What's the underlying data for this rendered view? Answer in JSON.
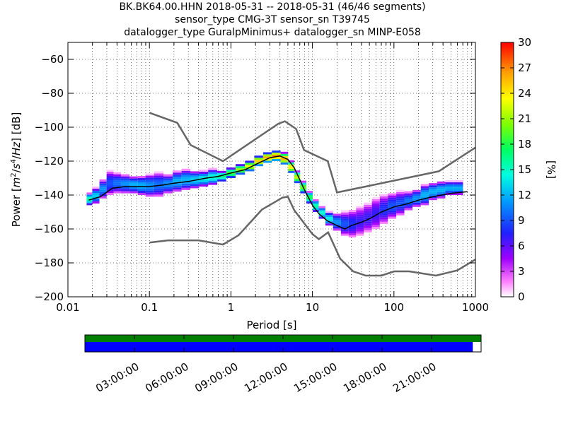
{
  "header": {
    "title_line1": "BK.BK64.00.HHN   2018-05-31 -- 2018-05-31  (46/46 segments)",
    "title_line2": "sensor_type CMG-3T sensor_sn T39745",
    "title_line3": "datalogger_type GuralpMinimus+ datalogger_sn MINP-E058"
  },
  "colors": {
    "noise_model": "#666666",
    "mean_line": "#000000",
    "data_coverage": "#008000",
    "psd_coverage": "#0000ff"
  },
  "chart_data": [
    {
      "type": "heatmap",
      "title": "BK.BK64.00.HHN   2018-05-31 -- 2018-05-31  (46/46 segments)",
      "xlabel": "Period [s]",
      "ylabel": "Power [m²/s⁴/Hz] [dB]",
      "xscale": "log",
      "xlim": [
        0.01,
        1000
      ],
      "ylim": [
        -200,
        -50
      ],
      "x_tick_labels": [
        "0.01",
        "0.1",
        "1",
        "10",
        "100",
        "1000"
      ],
      "y_tick_labels": [
        "−60",
        "−80",
        "−100",
        "−120",
        "−140",
        "−160",
        "−180",
        "−200"
      ],
      "grid": true,
      "colorbar": {
        "label": "[%]",
        "range": [
          0,
          30
        ],
        "tick_labels": [
          "0",
          "3",
          "6",
          "9",
          "12",
          "15",
          "18",
          "21",
          "24",
          "27",
          "30"
        ]
      },
      "series": [
        {
          "name": "",
          "kind": "psd-mean",
          "x": [
            0.018,
            0.025,
            0.035,
            0.05,
            0.07,
            0.1,
            0.15,
            0.2,
            0.3,
            0.5,
            0.7,
            1,
            1.5,
            2,
            3,
            4,
            5,
            6,
            7,
            8,
            10,
            12,
            15,
            20,
            25,
            30,
            40,
            50,
            70,
            100,
            150,
            200,
            300,
            500,
            800
          ],
          "y": [
            -143,
            -141,
            -136,
            -135,
            -135,
            -135,
            -134,
            -133,
            -132,
            -130,
            -129,
            -127,
            -125,
            -122,
            -118,
            -117,
            -119,
            -124,
            -131,
            -137,
            -146,
            -151,
            -155,
            -158,
            -160,
            -158,
            -156,
            -154,
            -150,
            -147,
            -145,
            -143,
            -141,
            -139,
            -138
          ]
        },
        {
          "name": "",
          "kind": "noise-model-high",
          "x": [
            0.1,
            0.22,
            0.32,
            0.8,
            3.8,
            4.6,
            6.3,
            7.9,
            15.4,
            20,
            354.8,
            1000
          ],
          "y": [
            -91.5,
            -97.4,
            -110.5,
            -120,
            -98,
            -96.5,
            -101,
            -113.5,
            -120,
            -138.5,
            -126,
            -112
          ]
        },
        {
          "name": "",
          "kind": "noise-model-low",
          "x": [
            0.1,
            0.17,
            0.4,
            0.8,
            1.24,
            2.4,
            4.3,
            5,
            6,
            10,
            12,
            15.6,
            21.9,
            31.6,
            45,
            70,
            101,
            154,
            328,
            600,
            1000
          ],
          "y": [
            -168,
            -166.7,
            -166.7,
            -169.2,
            -163.7,
            -148.6,
            -141.5,
            -141,
            -149,
            -163,
            -166,
            -162,
            -177.5,
            -185,
            -187.5,
            -187.5,
            -185,
            -185,
            -187.5,
            -184.4,
            -178
          ]
        }
      ],
      "density": [
        {
          "x": 0.018,
          "ymin": -146,
          "ymax": -139,
          "peak": 16
        },
        {
          "x": 0.022,
          "ymin": -145,
          "ymax": -136,
          "peak": 13
        },
        {
          "x": 0.027,
          "ymin": -142,
          "ymax": -131,
          "peak": 11
        },
        {
          "x": 0.033,
          "ymin": -140,
          "ymax": -126,
          "peak": 9
        },
        {
          "x": 0.04,
          "ymin": -139,
          "ymax": -127,
          "peak": 10
        },
        {
          "x": 0.05,
          "ymin": -139,
          "ymax": -128,
          "peak": 11
        },
        {
          "x": 0.065,
          "ymin": -139,
          "ymax": -129,
          "peak": 12
        },
        {
          "x": 0.08,
          "ymin": -140,
          "ymax": -129,
          "peak": 12
        },
        {
          "x": 0.1,
          "ymin": -141,
          "ymax": -128,
          "peak": 11
        },
        {
          "x": 0.13,
          "ymin": -141,
          "ymax": -127,
          "peak": 10
        },
        {
          "x": 0.17,
          "ymin": -139,
          "ymax": -128,
          "peak": 11
        },
        {
          "x": 0.22,
          "ymin": -138,
          "ymax": -126,
          "peak": 12
        },
        {
          "x": 0.28,
          "ymin": -137,
          "ymax": -125,
          "peak": 12
        },
        {
          "x": 0.36,
          "ymin": -136,
          "ymax": -126,
          "peak": 13
        },
        {
          "x": 0.46,
          "ymin": -135,
          "ymax": -126,
          "peak": 14
        },
        {
          "x": 0.6,
          "ymin": -134,
          "ymax": -125,
          "peak": 15
        },
        {
          "x": 0.77,
          "ymin": -132,
          "ymax": -126,
          "peak": 17
        },
        {
          "x": 1,
          "ymin": -130,
          "ymax": -124,
          "peak": 19
        },
        {
          "x": 1.3,
          "ymin": -128,
          "ymax": -122,
          "peak": 21
        },
        {
          "x": 1.7,
          "ymin": -126,
          "ymax": -120,
          "peak": 23
        },
        {
          "x": 2.2,
          "ymin": -123,
          "ymax": -117,
          "peak": 25
        },
        {
          "x": 2.8,
          "ymin": -121,
          "ymax": -115,
          "peak": 26
        },
        {
          "x": 3.6,
          "ymin": -120,
          "ymax": -114,
          "peak": 27
        },
        {
          "x": 4.6,
          "ymin": -122,
          "ymax": -115,
          "peak": 26
        },
        {
          "x": 5.5,
          "ymin": -127,
          "ymax": -120,
          "peak": 24
        },
        {
          "x": 6.5,
          "ymin": -133,
          "ymax": -126,
          "peak": 22
        },
        {
          "x": 7.7,
          "ymin": -139,
          "ymax": -132,
          "peak": 20
        },
        {
          "x": 9.2,
          "ymin": -145,
          "ymax": -138,
          "peak": 18
        },
        {
          "x": 11,
          "ymin": -150,
          "ymax": -143,
          "peak": 16
        },
        {
          "x": 13,
          "ymin": -154,
          "ymax": -147,
          "peak": 15
        },
        {
          "x": 16,
          "ymin": -158,
          "ymax": -150,
          "peak": 14
        },
        {
          "x": 20,
          "ymin": -161,
          "ymax": -151,
          "peak": 11
        },
        {
          "x": 25,
          "ymin": -164,
          "ymax": -150,
          "peak": 9
        },
        {
          "x": 31,
          "ymin": -165,
          "ymax": -149,
          "peak": 8
        },
        {
          "x": 38,
          "ymin": -164,
          "ymax": -147,
          "peak": 7
        },
        {
          "x": 48,
          "ymin": -162,
          "ymax": -145,
          "peak": 7
        },
        {
          "x": 60,
          "ymin": -160,
          "ymax": -142,
          "peak": 7
        },
        {
          "x": 75,
          "ymin": -157,
          "ymax": -140,
          "peak": 8
        },
        {
          "x": 95,
          "ymin": -154,
          "ymax": -139,
          "peak": 9
        },
        {
          "x": 120,
          "ymin": -152,
          "ymax": -138,
          "peak": 9
        },
        {
          "x": 150,
          "ymin": -149,
          "ymax": -138,
          "peak": 10
        },
        {
          "x": 190,
          "ymin": -147,
          "ymax": -137,
          "peak": 11
        },
        {
          "x": 240,
          "ymin": -146,
          "ymax": -134,
          "peak": 12
        },
        {
          "x": 300,
          "ymin": -143,
          "ymax": -133,
          "peak": 12
        },
        {
          "x": 380,
          "ymin": -142,
          "ymax": -132,
          "peak": 12
        },
        {
          "x": 480,
          "ymin": -140,
          "ymax": -132,
          "peak": 12
        },
        {
          "x": 600,
          "ymin": -140,
          "ymax": -132,
          "peak": 12
        }
      ]
    },
    {
      "type": "bar",
      "title": "",
      "xlabel": "",
      "ylabel": "",
      "x_tick_labels": [
        "03:00:00",
        "06:00:00",
        "09:00:00",
        "12:00:00",
        "15:00:00",
        "18:00:00",
        "21:00:00"
      ],
      "series": [
        {
          "name": "",
          "kind": "data-coverage",
          "coverage": [
            0.0,
            1.0
          ]
        },
        {
          "name": "",
          "kind": "psd-coverage",
          "coverage": [
            0.0,
            0.979
          ]
        }
      ]
    }
  ]
}
